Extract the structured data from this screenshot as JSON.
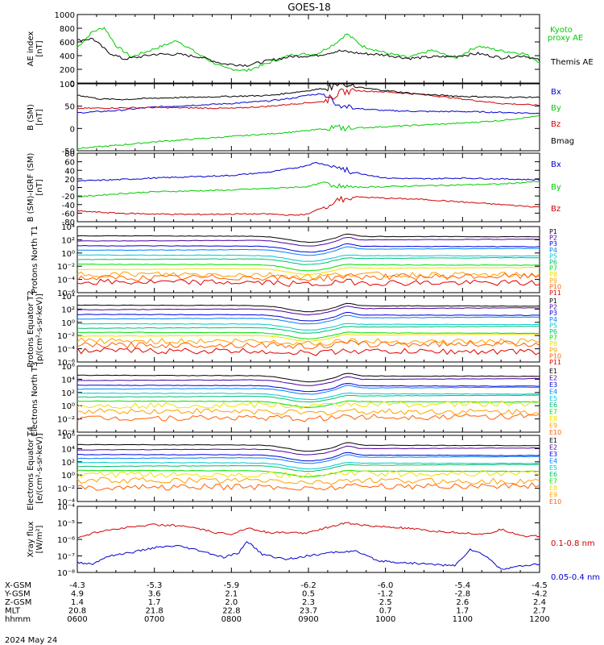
{
  "title": "GOES-18",
  "date_label": "2024 May 24",
  "colors": {
    "axis": "#000000",
    "black": "#000000",
    "red": "#d00000",
    "green": "#00cc00",
    "blue": "#0000d0"
  },
  "channel_colors": [
    "#000000",
    "#4a00a0",
    "#0000e0",
    "#0080ff",
    "#00c8d0",
    "#00c070",
    "#00e000",
    "#f0e000",
    "#ffa000",
    "#ff6000",
    "#e00000"
  ],
  "time_axis": {
    "range_hours": [
      6,
      12
    ],
    "ticks": [
      "0600",
      "0700",
      "0800",
      "0900",
      "1000",
      "1100",
      "1200"
    ]
  },
  "ephemeris": {
    "rows": [
      {
        "label": "X-GSM",
        "values": [
          "-4.3",
          "-5.3",
          "-5.9",
          "-6.2",
          "-6.0",
          "-5.4",
          "-4.5"
        ]
      },
      {
        "label": "Y-GSM",
        "values": [
          "4.9",
          "3.6",
          "2.1",
          "0.5",
          "-1.2",
          "-2.8",
          "-4.2"
        ]
      },
      {
        "label": "Z-GSM",
        "values": [
          "1.4",
          "1.7",
          "2.0",
          "2.3",
          "2.5",
          "2.6",
          "2.4"
        ]
      },
      {
        "label": "MLT",
        "values": [
          "20.8",
          "21.8",
          "22.8",
          "23.7",
          "0.7",
          "1.7",
          "2.7"
        ]
      },
      {
        "label": "hhmm",
        "values": [
          "0600",
          "0700",
          "0800",
          "0900",
          "1000",
          "1100",
          "1200"
        ]
      }
    ]
  },
  "chart_data": [
    {
      "type": "line",
      "ylabel": "AE index [nT]",
      "ylim": [
        0,
        1000
      ],
      "yticks": [
        "0",
        "200",
        "400",
        "600",
        "800",
        "1000"
      ],
      "legend": [
        "Kyoto proxy AE",
        "Themis AE"
      ],
      "series": [
        {
          "name": "Kyoto proxy AE",
          "color": "green",
          "x": [
            6.0,
            6.2,
            6.35,
            6.5,
            6.7,
            7.0,
            7.3,
            7.6,
            7.9,
            8.2,
            8.5,
            8.8,
            9.1,
            9.35,
            9.5,
            9.7,
            10.0,
            10.3,
            10.6,
            10.9,
            11.2,
            11.5,
            11.8,
            12.0
          ],
          "values": [
            520,
            750,
            810,
            550,
            380,
            500,
            620,
            400,
            220,
            180,
            300,
            420,
            420,
            580,
            720,
            540,
            440,
            370,
            480,
            360,
            540,
            470,
            430,
            310
          ]
        },
        {
          "name": "Themis AE",
          "color": "black",
          "x": [
            6.0,
            6.2,
            6.4,
            6.6,
            6.8,
            7.0,
            7.3,
            7.6,
            7.9,
            8.2,
            8.5,
            8.8,
            9.1,
            9.4,
            9.7,
            10.0,
            10.3,
            10.6,
            10.9,
            11.2,
            11.5,
            11.8,
            12.0
          ],
          "values": [
            620,
            650,
            450,
            350,
            380,
            420,
            420,
            380,
            280,
            260,
            330,
            390,
            400,
            470,
            430,
            410,
            360,
            380,
            390,
            430,
            370,
            400,
            330
          ]
        }
      ]
    },
    {
      "type": "line",
      "ylabel": "B (SM) [nT]",
      "ylim": [
        -50,
        100
      ],
      "yticks": [
        "-50",
        "0",
        "50",
        "100"
      ],
      "legend": [
        "Bx",
        "By",
        "Bz",
        "Bmag"
      ],
      "series": [
        {
          "name": "Bx",
          "color": "blue",
          "x": [
            6.0,
            6.5,
            7.0,
            7.5,
            8.0,
            8.5,
            8.8,
            9.0,
            9.2,
            9.4,
            9.6,
            10.0,
            10.5,
            11.0,
            11.5,
            12.0
          ],
          "values": [
            35,
            40,
            48,
            52,
            56,
            62,
            68,
            75,
            78,
            52,
            45,
            40,
            38,
            38,
            36,
            34
          ]
        },
        {
          "name": "By",
          "color": "green",
          "x": [
            6.0,
            6.5,
            7.0,
            7.5,
            8.0,
            8.5,
            9.0,
            9.3,
            9.5,
            10.0,
            10.5,
            11.0,
            11.5,
            12.0
          ],
          "values": [
            -45,
            -38,
            -30,
            -24,
            -18,
            -12,
            -5,
            2,
            0,
            4,
            8,
            12,
            18,
            28
          ]
        },
        {
          "name": "Bz",
          "color": "red",
          "x": [
            6.0,
            6.5,
            7.0,
            7.5,
            8.0,
            8.5,
            9.0,
            9.2,
            9.4,
            9.6,
            10.0,
            10.5,
            11.0,
            11.5,
            12.0
          ],
          "values": [
            45,
            46,
            47,
            46,
            45,
            50,
            58,
            60,
            80,
            85,
            82,
            76,
            66,
            56,
            52
          ]
        },
        {
          "name": "Bmag",
          "color": "black",
          "x": [
            6.0,
            6.3,
            6.6,
            7.0,
            7.5,
            8.0,
            8.5,
            9.0,
            9.2,
            9.4,
            9.6,
            10.0,
            10.5,
            11.0,
            11.5,
            12.0
          ],
          "values": [
            75,
            66,
            65,
            68,
            70,
            72,
            74,
            85,
            90,
            97,
            93,
            85,
            76,
            72,
            70,
            70
          ]
        }
      ]
    },
    {
      "type": "line",
      "ylabel": "B (SM)-IGRF (SM) [nT]",
      "ylim": [
        -80,
        80
      ],
      "yticks": [
        "-80",
        "-60",
        "-40",
        "-20",
        "0",
        "20",
        "40",
        "60",
        "80"
      ],
      "legend": [
        "Bx",
        "By",
        "Bz"
      ],
      "series": [
        {
          "name": "Bx",
          "color": "blue",
          "x": [
            6.0,
            6.5,
            7.0,
            7.5,
            8.0,
            8.5,
            8.9,
            9.1,
            9.3,
            9.6,
            10.0,
            10.5,
            11.0,
            11.5,
            12.0
          ],
          "values": [
            15,
            18,
            22,
            25,
            28,
            36,
            48,
            58,
            50,
            35,
            22,
            20,
            22,
            20,
            18
          ]
        },
        {
          "name": "By",
          "color": "green",
          "x": [
            6.0,
            6.5,
            7.0,
            7.5,
            8.0,
            8.5,
            9.0,
            9.2,
            9.5,
            10.0,
            10.5,
            11.0,
            11.5,
            12.0
          ],
          "values": [
            -22,
            -15,
            -10,
            -8,
            -6,
            -2,
            2,
            12,
            0,
            2,
            4,
            6,
            8,
            14
          ]
        },
        {
          "name": "Bz",
          "color": "red",
          "x": [
            6.0,
            6.5,
            7.0,
            7.5,
            8.0,
            8.5,
            8.8,
            9.0,
            9.2,
            9.4,
            9.6,
            10.0,
            10.5,
            11.0,
            11.5,
            12.0
          ],
          "values": [
            -55,
            -60,
            -62,
            -63,
            -62,
            -62,
            -65,
            -62,
            -45,
            -30,
            -22,
            -25,
            -28,
            -34,
            -40,
            -46
          ]
        }
      ]
    },
    {
      "type": "line",
      "scale": "log",
      "ylabel": "Protons North T1",
      "ylim_exp": [
        -6,
        4
      ],
      "yticks": [
        "10⁻⁶",
        "10⁻⁴",
        "10⁻²",
        "10⁰",
        "10²",
        "10⁴"
      ],
      "baseline_exp": [
        2.6,
        1.8,
        1.1,
        0.4,
        -0.3,
        -1.0,
        -1.7,
        -2.5,
        -3.2,
        -3.8,
        -4.4
      ],
      "series_names": [
        "P1",
        "P2",
        "P3",
        "P4",
        "P5",
        "P6",
        "P7",
        "P8",
        "P9",
        "P10",
        "P11"
      ]
    },
    {
      "type": "line",
      "scale": "log",
      "ylabel": "Protons Equator T2 [p/(cm²-s-sr-keV)]",
      "ylim_exp": [
        -6,
        4
      ],
      "yticks": [
        "10⁻⁶",
        "10⁻⁴",
        "10⁻²",
        "10⁰",
        "10²",
        "10⁴"
      ],
      "baseline_exp": [
        2.6,
        1.9,
        1.2,
        0.5,
        -0.2,
        -0.9,
        -1.5,
        -2.1,
        -2.8,
        -3.5,
        -4.3
      ],
      "series_names": [
        "P1",
        "P2",
        "P3",
        "P4",
        "P5",
        "P6",
        "P7",
        "P8",
        "P9",
        "P10",
        "P11"
      ]
    },
    {
      "type": "line",
      "scale": "log",
      "ylabel": "Electrons North T3",
      "ylim_exp": [
        -4,
        6
      ],
      "yticks": [
        "10⁻⁴",
        "10⁻²",
        "10⁰",
        "10²",
        "10⁴",
        "10⁶"
      ],
      "baseline_exp": [
        4.6,
        3.8,
        3.1,
        2.5,
        1.9,
        1.3,
        0.7,
        0.0,
        -0.8,
        -1.9
      ],
      "series_names": [
        "E1",
        "E2",
        "E3",
        "E4",
        "E5",
        "E6",
        "E7",
        "E8",
        "E9",
        "E10"
      ]
    },
    {
      "type": "line",
      "scale": "log",
      "ylabel": "Electrons Equator T4 [e/(cm²-s-sr-keV)]",
      "ylim_exp": [
        -4,
        6
      ],
      "yticks": [
        "10⁻⁴",
        "10⁻²",
        "10⁰",
        "10²",
        "10⁴",
        "10⁶"
      ],
      "baseline_exp": [
        4.6,
        3.8,
        3.1,
        2.5,
        1.9,
        1.3,
        0.7,
        0.0,
        -0.8,
        -1.9
      ],
      "series_names": [
        "E1",
        "E2",
        "E3",
        "E4",
        "E5",
        "E6",
        "E7",
        "E8",
        "E9",
        "E10"
      ]
    },
    {
      "type": "line",
      "scale": "log",
      "ylabel": "Xray flux [W/m²]",
      "ylim_exp": [
        -8,
        -4
      ],
      "yticks": [
        "10⁻⁸",
        "10⁻⁷",
        "10⁻⁶",
        "10⁻⁵",
        "10⁻⁴"
      ],
      "series": [
        {
          "name": "0.1-0.8 nm",
          "color": "red",
          "x": [
            6.0,
            6.3,
            6.6,
            7.0,
            7.4,
            7.8,
            8.0,
            8.2,
            8.5,
            9.0,
            9.3,
            9.5,
            9.8,
            10.2,
            10.6,
            11.0,
            11.3,
            11.5,
            11.8,
            12.0
          ],
          "exp": [
            -5.9,
            -5.5,
            -5.3,
            -5.1,
            -5.2,
            -5.6,
            -5.7,
            -5.3,
            -5.6,
            -5.6,
            -5.2,
            -5.0,
            -5.2,
            -5.3,
            -5.5,
            -5.6,
            -5.7,
            -5.4,
            -5.8,
            -5.8
          ]
        },
        {
          "name": "0.05-0.4 nm",
          "color": "blue",
          "x": [
            6.0,
            6.2,
            6.4,
            6.7,
            7.0,
            7.3,
            7.6,
            7.9,
            8.1,
            8.2,
            8.4,
            8.7,
            9.0,
            9.3,
            9.6,
            9.9,
            10.2,
            10.6,
            10.9,
            11.0,
            11.1,
            11.3,
            11.5,
            11.8,
            12.0
          ],
          "exp": [
            -7.4,
            -7.5,
            -7.0,
            -6.8,
            -6.5,
            -6.4,
            -6.7,
            -7.1,
            -6.8,
            -6.1,
            -6.9,
            -7.2,
            -7.0,
            -6.8,
            -6.7,
            -7.3,
            -7.4,
            -7.5,
            -7.6,
            -7.1,
            -6.6,
            -7.0,
            -7.8,
            -7.6,
            -7.5
          ]
        }
      ]
    }
  ]
}
